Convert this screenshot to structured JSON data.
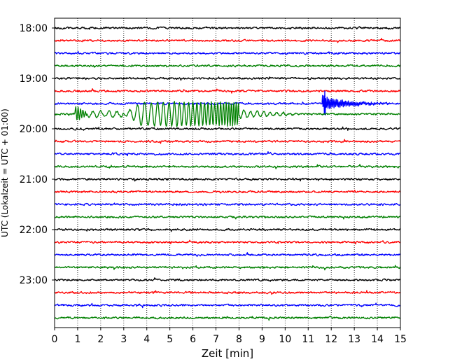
{
  "chart_data": {
    "type": "line",
    "title": "",
    "xlabel": "Zeit  [min]",
    "ylabel": "UTC (Lokalzeit = UTC + 01:00)",
    "xlim": [
      0,
      15
    ],
    "x_ticks": [
      "0",
      "1",
      "2",
      "3",
      "4",
      "5",
      "6",
      "7",
      "8",
      "9",
      "10",
      "11",
      "12",
      "13",
      "14",
      "15"
    ],
    "y_tick_labels": [
      "18:00",
      "19:00",
      "20:00",
      "21:00",
      "22:00",
      "23:00"
    ],
    "grid": "vertical dotted lines at each minute",
    "trace_interval_min": 15,
    "trace_colors": [
      "#000000",
      "#ff0000",
      "#0000ff",
      "#008000"
    ],
    "traces": [
      {
        "start": "18:00",
        "color": "#000000"
      },
      {
        "start": "18:15",
        "color": "#ff0000"
      },
      {
        "start": "18:30",
        "color": "#0000ff"
      },
      {
        "start": "18:45",
        "color": "#008000"
      },
      {
        "start": "19:00",
        "color": "#000000"
      },
      {
        "start": "19:15",
        "color": "#ff0000"
      },
      {
        "start": "19:30",
        "color": "#0000ff",
        "event": {
          "from_min": 11.6,
          "to_min": 14.6,
          "type": "local burst"
        }
      },
      {
        "start": "19:45",
        "color": "#008000",
        "event": {
          "from_min": 0.9,
          "to_min": 10.5,
          "type": "teleseismic earthquake, large surface waves 3-8 min"
        }
      },
      {
        "start": "20:00",
        "color": "#000000"
      },
      {
        "start": "20:15",
        "color": "#ff0000"
      },
      {
        "start": "20:30",
        "color": "#0000ff"
      },
      {
        "start": "20:45",
        "color": "#008000"
      },
      {
        "start": "21:00",
        "color": "#000000"
      },
      {
        "start": "21:15",
        "color": "#ff0000"
      },
      {
        "start": "21:30",
        "color": "#0000ff"
      },
      {
        "start": "21:45",
        "color": "#008000"
      },
      {
        "start": "22:00",
        "color": "#000000"
      },
      {
        "start": "22:15",
        "color": "#ff0000"
      },
      {
        "start": "22:30",
        "color": "#0000ff"
      },
      {
        "start": "22:45",
        "color": "#008000"
      },
      {
        "start": "23:00",
        "color": "#000000"
      },
      {
        "start": "23:15",
        "color": "#ff0000"
      },
      {
        "start": "23:30",
        "color": "#0000ff"
      },
      {
        "start": "23:45",
        "color": "#008000"
      }
    ]
  }
}
